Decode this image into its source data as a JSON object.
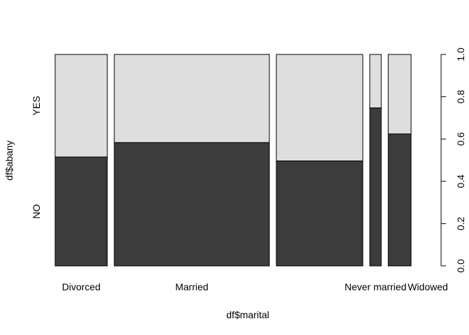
{
  "chart_data": {
    "type": "mosaic",
    "title": "",
    "xlabel": "df$marital",
    "ylabel": "df$abany",
    "categories": [
      "Divorced",
      "Married",
      "",
      "Never married",
      "Widowed"
    ],
    "category_widths": [
      0.146,
      0.434,
      0.242,
      0.032,
      0.064
    ],
    "series": [
      {
        "name": "NO",
        "values": [
          0.515,
          0.583,
          0.496,
          0.747,
          0.624
        ]
      },
      {
        "name": "YES",
        "values": [
          0.485,
          0.417,
          0.504,
          0.253,
          0.376
        ]
      }
    ],
    "ylim": [
      0,
      1
    ],
    "y_ticks": [
      "0.0",
      "0.2",
      "0.4",
      "0.6",
      "0.8",
      "1.0"
    ],
    "grid": false,
    "colors": {
      "NO": "#3c3c3c",
      "YES": "#dedede",
      "border": "#000000"
    }
  }
}
